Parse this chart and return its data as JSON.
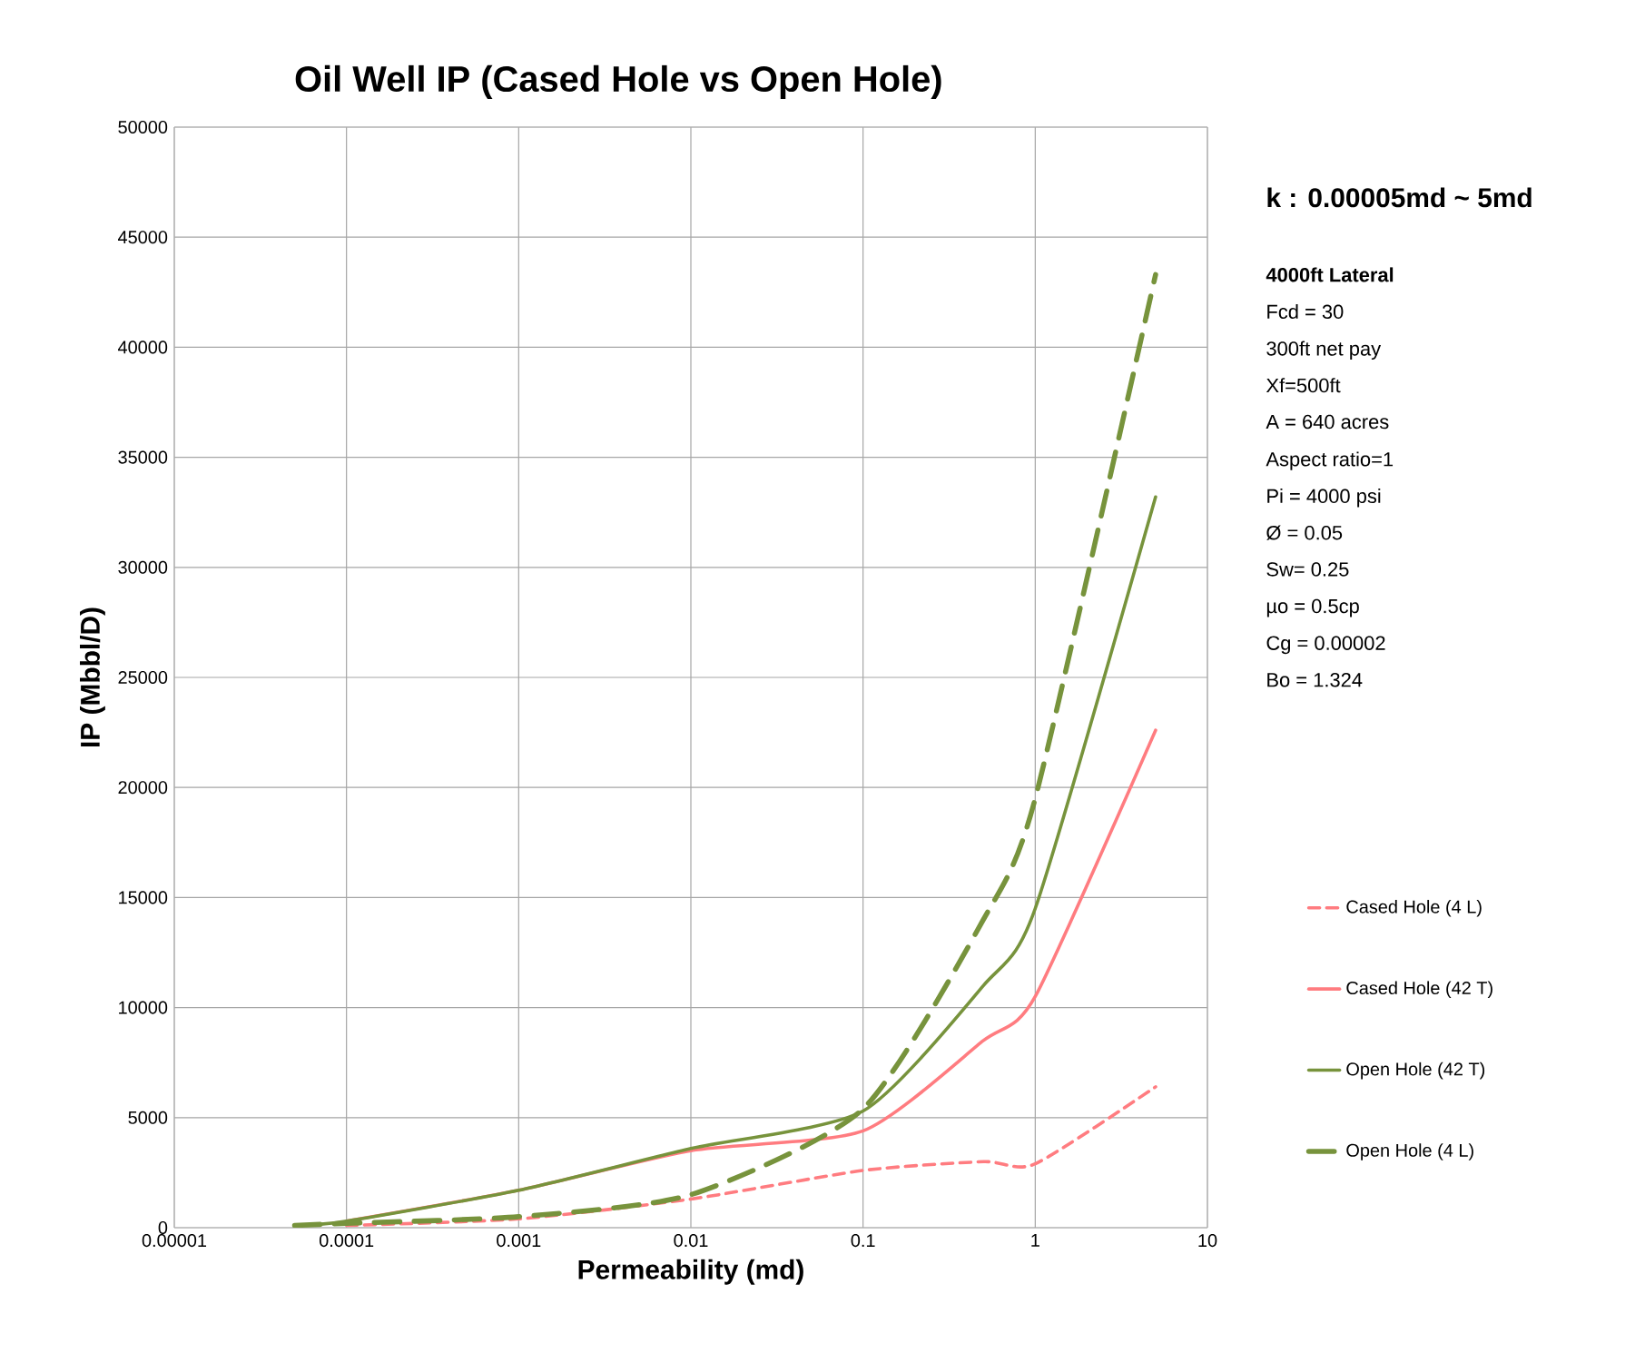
{
  "chart_data": {
    "type": "line",
    "title": "Oil Well IP (Cased Hole vs Open Hole)",
    "xlabel": "Permeability (md)",
    "ylabel": "IP (Mbbl/D)",
    "annotations": [
      "k : 0.00005md ~ 5md",
      "4000ft Lateral",
      "Fcd = 30",
      "300ft net pay",
      "Xf=500ft",
      "A = 640 acres",
      "Aspect ratio=1",
      "Pi = 4000 psi",
      "Ø = 0.05",
      "Sw= 0.25",
      "µo = 0.5cp",
      "Cg = 0.00002",
      "Bo = 1.324"
    ],
    "log": "x",
    "grid": true,
    "legend": "right",
    "marker": "none",
    "xlim": [
      1e-05,
      10
    ],
    "xticks": [
      {
        "value": 1e-05,
        "label": "0.00001"
      },
      0.0001,
      0.001,
      0.01,
      0.1,
      1,
      10
    ],
    "ylim": [
      0,
      50000
    ],
    "yticks": [
      0,
      5000,
      10000,
      15000,
      20000,
      25000,
      30000,
      35000,
      40000,
      45000,
      50000
    ],
    "series": [
      {
        "name": "Cased Hole (4 L)",
        "color": "#ff7c80",
        "line_style": "dashed",
        "x": [
          0.0001,
          0.001,
          0.01,
          0.1,
          0.5,
          1,
          5
        ],
        "values": [
          100,
          400,
          1300,
          2600,
          3000,
          2900,
          6400
        ]
      },
      {
        "name": "Cased Hole (42 T)",
        "color": "#ff7c80",
        "line_style": "solid",
        "x": [
          0.0001,
          0.001,
          0.01,
          0.1,
          0.5,
          1,
          5
        ],
        "values": [
          300,
          1700,
          3500,
          4400,
          8500,
          10500,
          22600
        ]
      },
      {
        "name": "Open Hole (42 T)",
        "color": "#77933c",
        "line_style": "solid",
        "x": [
          5e-05,
          0.0001,
          0.001,
          0.01,
          0.1,
          0.5,
          1,
          5
        ],
        "values": [
          100,
          300,
          1700,
          3600,
          5300,
          11000,
          14500,
          33200
        ]
      },
      {
        "name": "Open Hole (4 L)",
        "color": "#77933c",
        "line_style": "dashed",
        "x": [
          5e-05,
          0.0001,
          0.001,
          0.01,
          0.1,
          0.5,
          1,
          5
        ],
        "values": [
          100,
          200,
          500,
          1500,
          5400,
          14000,
          19500,
          43300
        ]
      }
    ]
  }
}
